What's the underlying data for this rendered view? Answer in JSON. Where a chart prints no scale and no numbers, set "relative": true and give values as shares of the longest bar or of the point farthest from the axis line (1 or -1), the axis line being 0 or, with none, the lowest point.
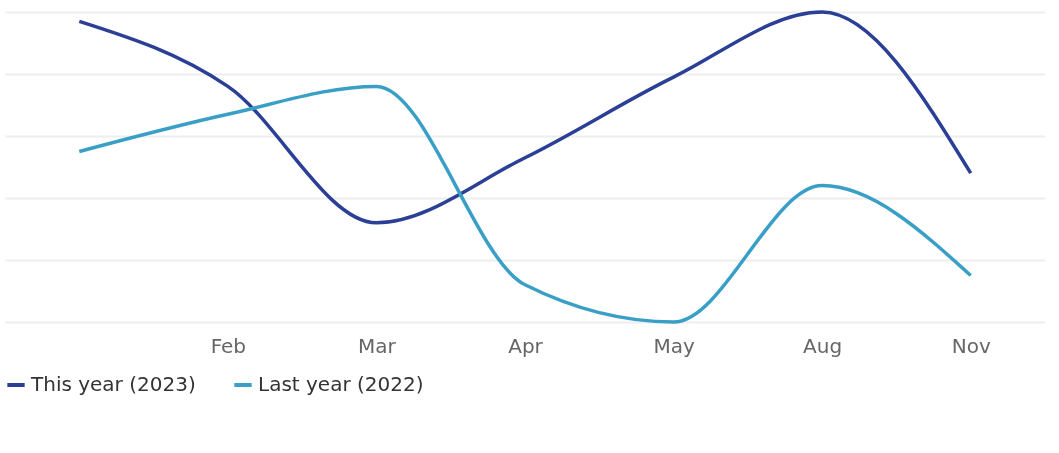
{
  "chart_data": {
    "type": "line",
    "relative": true,
    "categories": [
      null,
      "Feb",
      "Mar",
      "Apr",
      "May",
      "Aug",
      "Nov"
    ],
    "series": [
      {
        "name": "This year (2023)",
        "color": "#2a3f95",
        "values": [
          0.97,
          0.76,
          0.32,
          0.53,
          0.79,
          1.0,
          0.48
        ]
      },
      {
        "name": "Last year (2022)",
        "color": "#3a9fc6",
        "values": [
          0.55,
          0.67,
          0.76,
          0.12,
          0,
          0.44,
          0.15
        ]
      }
    ],
    "grid": "y",
    "legend": "bottom",
    "marker": "none",
    "line_style": "solid"
  }
}
